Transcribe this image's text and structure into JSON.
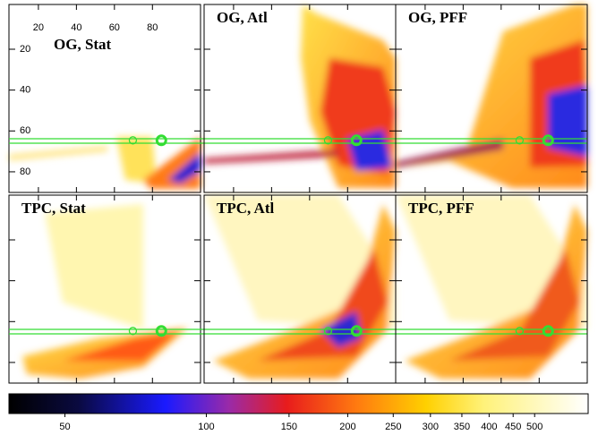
{
  "chart_data": {
    "type": "heatmap-grid",
    "panels": [
      {
        "title": "OG, Stat"
      },
      {
        "title": "OG, Atl"
      },
      {
        "title": "OG, PFF"
      },
      {
        "title": "TPC, Stat"
      },
      {
        "title": "TPC, Atl"
      },
      {
        "title": "TPC, PFF"
      }
    ],
    "xlim": [
      4.5,
      105.3
    ],
    "ylim": [
      -1.9,
      90.1
    ],
    "xticks": [
      20,
      40,
      60,
      80
    ],
    "yticks": [
      20,
      40,
      60,
      80
    ],
    "guide_lines": [
      63.8,
      66.0
    ],
    "guide_points": [
      {
        "x": 69.7,
        "y": 64.6
      },
      {
        "x": 84.7,
        "y": 64.6
      }
    ],
    "guide_color": "#33dd33",
    "colorbar": {
      "scale": "log",
      "lim": [
        38,
        650
      ],
      "ticks": [
        50,
        100,
        150,
        200,
        250,
        300,
        350,
        400,
        450,
        500
      ]
    }
  }
}
